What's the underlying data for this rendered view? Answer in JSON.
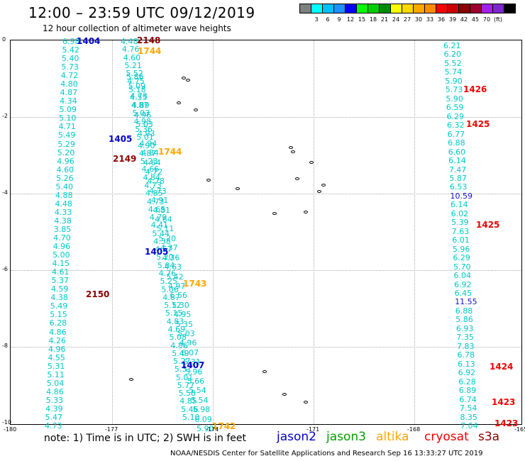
{
  "header": {
    "title": "12:00 – 23:59 UTC 09/12/2019",
    "subtitle": "12 hour collection of altimeter wave heights"
  },
  "colorbar": {
    "colors": [
      "#808080",
      "#00ffff",
      "#00bfff",
      "#1e90ff",
      "#0000ff",
      "#00ff00",
      "#00cd00",
      "#008b00",
      "#ffff00",
      "#ffd700",
      "#ffa500",
      "#ff8c00",
      "#ff0000",
      "#cd0000",
      "#8b0000",
      "#9b0030",
      "#a020f0",
      "#7d26cd",
      "#000000"
    ],
    "labels": [
      "3",
      "6",
      "9",
      "12",
      "15",
      "18",
      "21",
      "24",
      "27",
      "30",
      "33",
      "36",
      "39",
      "42",
      "45",
      "70",
      "(ft)"
    ]
  },
  "axes": {
    "x_ticks": [
      "-180",
      "-177",
      "-174",
      "-171",
      "-168",
      "-165"
    ],
    "y_ticks": [
      "0",
      "-2",
      "-4",
      "-6",
      "-8",
      "-10"
    ]
  },
  "tracks": [
    {
      "id": "t1",
      "color": "cyan",
      "values": [
        "6.98",
        "5.42",
        "5.40",
        "5.73",
        "4.72",
        "4.80",
        "4.87",
        "4.34",
        "5.09",
        "5.10",
        "4.71",
        "5.49",
        "5.29",
        "5.20",
        "4.96",
        "4.60",
        "5.26",
        "5.40",
        "4.88",
        "4.48",
        "4.33",
        "4.38",
        "3.85",
        "4.70",
        "4.96",
        "5.00",
        "4.15",
        "4.61",
        "5.37",
        "4.59",
        "4.38",
        "5.49",
        "5.15",
        "6.28",
        "4.86",
        "4.26",
        "4.96",
        "4.55",
        "5.31",
        "5.11",
        "5.04",
        "4.86",
        "5.33",
        "4.39",
        "5.47",
        "4.73"
      ]
    },
    {
      "id": "t2",
      "color": "cyan",
      "values": [
        "4.48",
        "4.76",
        "4.60",
        "5.21",
        "5.52",
        "4.75",
        "5.18",
        "4.55",
        "4.87",
        "5.03",
        "4.98",
        "5.36",
        "5.01",
        "4.90",
        "4.87",
        "5.23",
        "4.66",
        "4.84",
        "4.73",
        "4.85",
        "4.73",
        "4.65",
        "4.79",
        "4.41",
        "5.44",
        "4.38",
        "4.57",
        "5.20",
        "5.04",
        "4.76",
        "5.25",
        "5.06",
        "4.67",
        "5.12",
        "5.15",
        "4.83",
        "4.69",
        "5.08",
        "4.86",
        "5.49",
        "5.27",
        "5.31",
        "5.01",
        "5.77",
        "5.58",
        "4.85",
        "5.46",
        "5.10"
      ]
    },
    {
      "id": "t3",
      "color": "cyan",
      "values": [
        "5.86",
        "5.09",
        "4.73",
        "4.89",
        "4.96",
        "5.03",
        "4.93",
        "4.94",
        "4.84",
        "4.64",
        "4.72",
        "4.78",
        "4.73",
        "4.91",
        "4.81",
        "4.64",
        "5.11",
        "5.20",
        "4.37",
        "4.36",
        "4.63",
        "5.42",
        "4.97",
        "6.56",
        "5.30",
        "4.95",
        "5.35",
        "5.03",
        "4.96",
        "6.07",
        "5.31",
        "5.96",
        "5.66",
        "5.54",
        "5.54",
        "5.98",
        "6.09",
        "5.90"
      ]
    },
    {
      "id": "t4",
      "color": "cyan",
      "values": [
        "6.21",
        "6.20",
        "5.52",
        "5.74",
        "5.90",
        "5.73",
        "5.90",
        "6.59",
        "6.29",
        "6.32",
        "6.77",
        "6.88",
        "6.60",
        "6.14",
        "7.47",
        "5.87",
        "6.53",
        "10.59",
        "6.14",
        "6.02",
        "5.39",
        "7.63",
        "6.01",
        "5.96",
        "6.29",
        "5.70",
        "6.04",
        "6.92",
        "6.45",
        "11.55",
        "6.88",
        "5.86",
        "6.93",
        "7.35",
        "7.83",
        "6.78",
        "6.13",
        "6.92",
        "6.28",
        "6.89",
        "6.74",
        "7.54",
        "8.35",
        "7.04"
      ]
    }
  ],
  "time_labels": [
    {
      "text": "1404",
      "color": "#0000cc"
    },
    {
      "text": "2148",
      "color": "#8b0000"
    },
    {
      "text": "1744",
      "color": "#ffa500"
    },
    {
      "text": "1405",
      "color": "#0000cc"
    },
    {
      "text": "1744",
      "color": "#ffa500"
    },
    {
      "text": "2149",
      "color": "#8b0000"
    },
    {
      "text": "1405",
      "color": "#0000cc"
    },
    {
      "text": "1743",
      "color": "#ffa500"
    },
    {
      "text": "2150",
      "color": "#8b0000"
    },
    {
      "text": "1407",
      "color": "#0000cc"
    },
    {
      "text": "1742",
      "color": "#ffa500"
    },
    {
      "text": "1426",
      "color": "#ee0000"
    },
    {
      "text": "1425",
      "color": "#ee0000"
    },
    {
      "text": "1425",
      "color": "#ee0000"
    },
    {
      "text": "1424",
      "color": "#ee0000"
    },
    {
      "text": "1423",
      "color": "#ee0000"
    },
    {
      "text": "1423",
      "color": "#ee0000"
    }
  ],
  "footer": {
    "note": "note: 1) Time is in UTC; 2) SWH is in feet",
    "credit": "NOAA/NESDIS Center for Satellite Applications and Research   Sep 16 13:33:27 UTC 2019"
  },
  "legend": [
    {
      "label": "jason2",
      "color": "#0000cc"
    },
    {
      "label": "jason3",
      "color": "#00a000"
    },
    {
      "label": "altika",
      "color": "#ffa500"
    },
    {
      "label": "cryosat",
      "color": "#ee0000"
    },
    {
      "label": "s3a",
      "color": "#8b0000"
    }
  ]
}
